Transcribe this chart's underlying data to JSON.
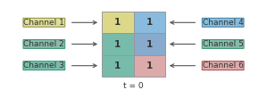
{
  "matrix_values": [
    [
      1,
      1
    ],
    [
      1,
      1
    ],
    [
      1,
      1
    ]
  ],
  "cell_colors": [
    [
      "#ddd888",
      "#88bbdd"
    ],
    [
      "#77bbaa",
      "#88aacc"
    ],
    [
      "#77bbaa",
      "#ddaaaa"
    ]
  ],
  "label_t": "t = 0",
  "channels": [
    {
      "name": "Channel 1",
      "side": "left",
      "row": 0,
      "bg": "#dddd99",
      "edge": "#999944"
    },
    {
      "name": "Channel 2",
      "side": "left",
      "row": 1,
      "bg": "#88bbaa",
      "edge": "#449977"
    },
    {
      "name": "Channel 3",
      "side": "left",
      "row": 2,
      "bg": "#77bbaa",
      "edge": "#449977"
    },
    {
      "name": "Channel 4",
      "side": "right",
      "row": 0,
      "bg": "#88bbdd",
      "edge": "#4488aa"
    },
    {
      "name": "Channel 5",
      "side": "right",
      "row": 1,
      "bg": "#88bbaa",
      "edge": "#449977"
    },
    {
      "name": "Channel 6",
      "side": "right",
      "row": 2,
      "bg": "#ddaaaa",
      "edge": "#aa5555"
    }
  ],
  "outline_color": "#999999",
  "text_color": "#333333",
  "font_size": 6.5,
  "cell_font_size": 7.5,
  "fig_w": 2.99,
  "fig_h": 1.1,
  "dpi": 100
}
